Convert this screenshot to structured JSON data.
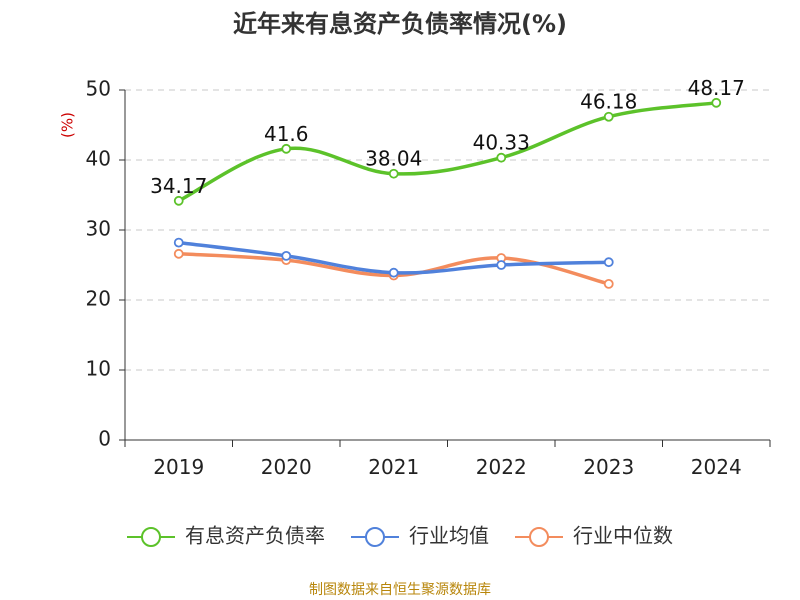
{
  "chart_data": {
    "type": "line",
    "title": "近年来有息资产负债率情况(%)",
    "y_unit": "(%)",
    "categories": [
      "2019",
      "2020",
      "2021",
      "2022",
      "2023",
      "2024"
    ],
    "ylim": [
      0,
      50
    ],
    "yticks": [
      "0",
      "10",
      "20",
      "30",
      "40",
      "50"
    ],
    "grid": true,
    "legend_position": "bottom",
    "series": [
      {
        "name": "有息资产负债率",
        "values": [
          34.17,
          41.6,
          38.04,
          40.33,
          46.18,
          48.17
        ],
        "labels": [
          "34.17",
          "41.6",
          "38.04",
          "40.33",
          "46.18",
          "48.17"
        ],
        "color": "#5cc22a",
        "show_labels": true
      },
      {
        "name": "行业均值",
        "values": [
          28.2,
          26.3,
          23.9,
          25.0,
          25.4,
          null
        ],
        "color": "#5081db",
        "show_labels": false
      },
      {
        "name": "行业中位数",
        "values": [
          26.6,
          25.7,
          23.5,
          26.0,
          22.3,
          null
        ],
        "color": "#f38c5d",
        "show_labels": false
      }
    ],
    "source": "制图数据来自恒生聚源数据库"
  }
}
